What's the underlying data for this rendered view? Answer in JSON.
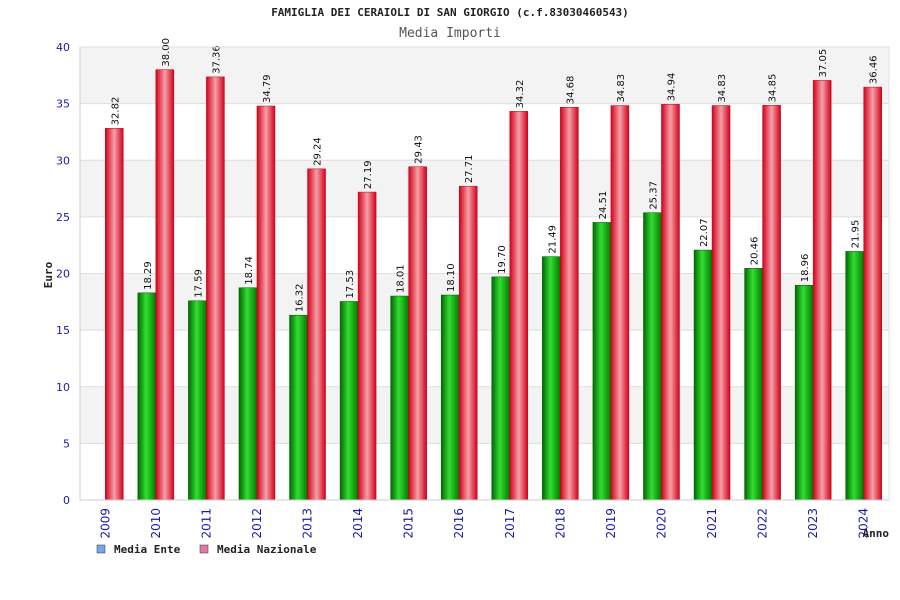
{
  "chart_data": {
    "type": "bar",
    "title": "FAMIGLIA DEI CERAIOLI DI SAN GIORGIO (c.f.83030460543)",
    "subtitle": "Media Importi",
    "xlabel": "Anno",
    "ylabel": "Euro",
    "ylim": [
      0,
      40
    ],
    "yticks": [
      0,
      5,
      10,
      15,
      20,
      25,
      30,
      35,
      40
    ],
    "grid": true,
    "legend_position": "bottom-left",
    "categories": [
      "2009",
      "2010",
      "2011",
      "2012",
      "2013",
      "2014",
      "2015",
      "2016",
      "2017",
      "2018",
      "2019",
      "2020",
      "2021",
      "2022",
      "2023",
      "2024"
    ],
    "series": [
      {
        "name": "Media Ente",
        "color": "#00b000",
        "legend_color": "#6fa8e8",
        "values": [
          null,
          18.29,
          17.59,
          18.74,
          16.32,
          17.53,
          18.01,
          18.1,
          19.7,
          21.49,
          24.51,
          25.37,
          22.07,
          20.46,
          18.96,
          21.95
        ],
        "labels": [
          "",
          "18.29",
          "17.59",
          "18.74",
          "16.32",
          "17.53",
          "18.01",
          "18.10",
          "19.70",
          "21.49",
          "24.51",
          "25.37",
          "22.07",
          "20.46",
          "18.96",
          "21.95"
        ]
      },
      {
        "name": "Media Nazionale",
        "color": "#e8101e",
        "legend_color": "#e07ba8",
        "values": [
          32.82,
          38.0,
          37.36,
          34.79,
          29.24,
          27.19,
          29.43,
          27.71,
          34.32,
          34.68,
          34.83,
          34.94,
          34.83,
          34.85,
          37.05,
          36.46
        ],
        "labels": [
          "32.82",
          "38.00",
          "37.36",
          "34.79",
          "29.24",
          "27.19",
          "29.43",
          "27.71",
          "34.32",
          "34.68",
          "34.83",
          "34.94",
          "34.83",
          "34.85",
          "37.05",
          "36.46"
        ]
      }
    ]
  }
}
